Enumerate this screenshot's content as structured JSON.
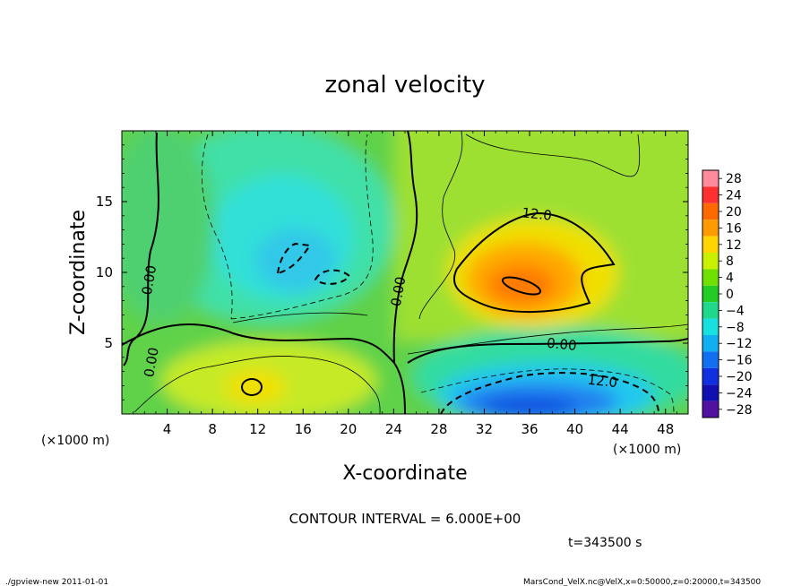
{
  "chart_data": {
    "type": "heatmap",
    "title": "zonal velocity",
    "xlabel": "X-coordinate",
    "ylabel": "Z-coordinate",
    "x_unit": "(×1000 m)",
    "xlim": [
      0,
      50
    ],
    "ylim": [
      0,
      20
    ],
    "x_ticks": [
      4,
      8,
      12,
      16,
      20,
      24,
      28,
      32,
      36,
      40,
      44,
      48
    ],
    "y_ticks": [
      5,
      10,
      15
    ],
    "colorbar": {
      "levels": [
        28,
        24,
        20,
        16,
        12,
        8,
        4,
        0,
        -4,
        -8,
        -12,
        -16,
        -20,
        -24,
        -28
      ],
      "labels": [
        "28",
        "24",
        "20",
        "16",
        "12",
        "8",
        "4",
        "0",
        "−4",
        "−8",
        "−12",
        "−16",
        "−20",
        "−24",
        "−28"
      ],
      "colors": [
        "#ff8a9a",
        "#ff3030",
        "#ff6a00",
        "#ff9a00",
        "#ffd400",
        "#c8f000",
        "#70e000",
        "#22cc22",
        "#20d88a",
        "#18e0e0",
        "#10b0f0",
        "#1070f0",
        "#1030e0",
        "#1010b0",
        "#5010a0"
      ]
    },
    "contour_labels": [
      {
        "text": "12.0",
        "x": 36.6,
        "z": 13.8
      },
      {
        "text": "0.00",
        "x": 38.8,
        "z": 4.6
      },
      {
        "text": "12.0",
        "x": 42.4,
        "z": 2.0
      },
      {
        "text": "0.00",
        "x": 2.8,
        "z": 9.4
      },
      {
        "text": "0.00",
        "x": 3.0,
        "z": 3.6
      },
      {
        "text": "0.00",
        "x": 24.8,
        "z": 8.6
      }
    ],
    "contour_interval_text": "CONTOUR INTERVAL = 6.000E+00",
    "time_text": "t=343500 s"
  },
  "footer": {
    "left": "./gpview-new  2011-01-01",
    "right": "MarsCond_VelX.nc@VelX,x=0:50000,z=0:20000,t=343500"
  }
}
